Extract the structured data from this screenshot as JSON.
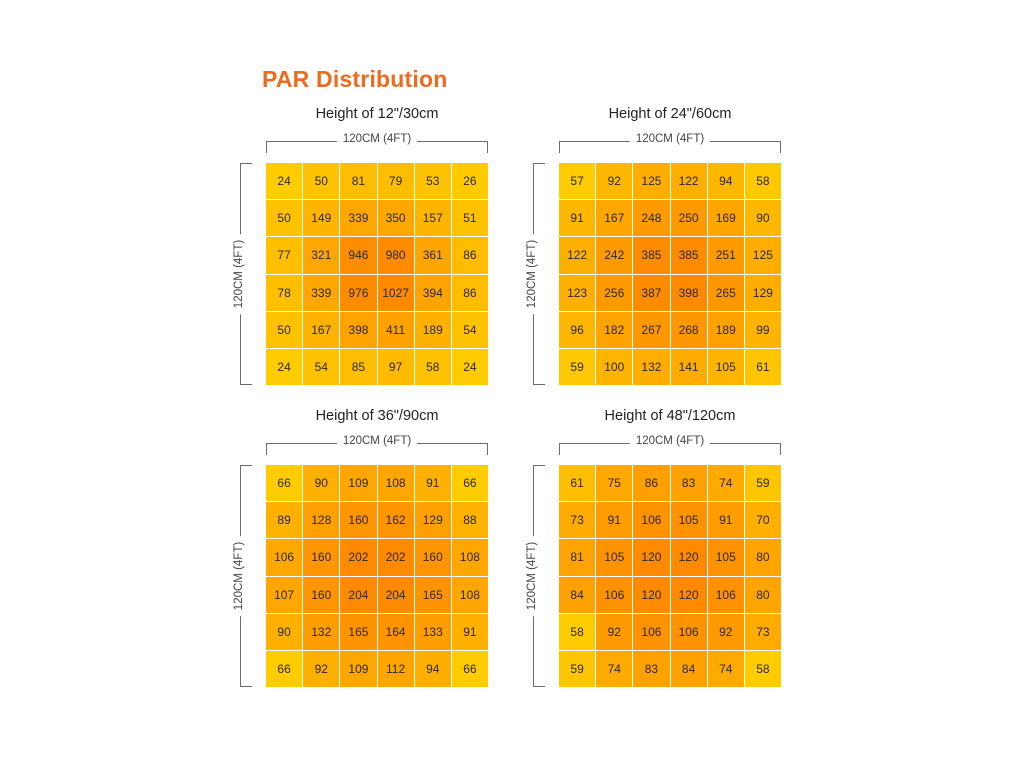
{
  "title": "PAR Distribution",
  "width_label": "120CM (4FT)",
  "height_label": "120CM (4FT)",
  "colors": {
    "title": "#ef6a1c",
    "low": "#ffcc00",
    "mid": "#ffa800",
    "high": "#ff8a00"
  },
  "chart_data": [
    {
      "type": "heatmap",
      "title": "Height of 12\"/30cm",
      "xlabel": "120CM (4FT)",
      "ylabel": "120CM (4FT)",
      "values": [
        [
          24,
          50,
          81,
          79,
          53,
          26
        ],
        [
          50,
          149,
          339,
          350,
          157,
          51
        ],
        [
          77,
          321,
          946,
          980,
          361,
          86
        ],
        [
          78,
          339,
          976,
          1027,
          394,
          86
        ],
        [
          50,
          167,
          398,
          411,
          189,
          54
        ],
        [
          24,
          54,
          85,
          97,
          58,
          24
        ]
      ]
    },
    {
      "type": "heatmap",
      "title": "Height of 24\"/60cm",
      "xlabel": "120CM (4FT)",
      "ylabel": "120CM (4FT)",
      "values": [
        [
          57,
          92,
          125,
          122,
          94,
          58
        ],
        [
          91,
          167,
          248,
          250,
          169,
          90
        ],
        [
          122,
          242,
          385,
          385,
          251,
          125
        ],
        [
          123,
          256,
          387,
          398,
          265,
          129
        ],
        [
          96,
          182,
          267,
          268,
          189,
          99
        ],
        [
          59,
          100,
          132,
          141,
          105,
          61
        ]
      ]
    },
    {
      "type": "heatmap",
      "title": "Height of 36\"/90cm",
      "xlabel": "120CM (4FT)",
      "ylabel": "120CM (4FT)",
      "values": [
        [
          66,
          90,
          109,
          108,
          91,
          66
        ],
        [
          89,
          128,
          160,
          162,
          129,
          88
        ],
        [
          106,
          160,
          202,
          202,
          160,
          108
        ],
        [
          107,
          160,
          204,
          204,
          165,
          108
        ],
        [
          90,
          132,
          165,
          164,
          133,
          91
        ],
        [
          66,
          92,
          109,
          112,
          94,
          66
        ]
      ]
    },
    {
      "type": "heatmap",
      "title": "Height of 48\"/120cm",
      "xlabel": "120CM (4FT)",
      "ylabel": "120CM (4FT)",
      "values": [
        [
          61,
          75,
          86,
          83,
          74,
          59
        ],
        [
          73,
          91,
          106,
          105,
          91,
          70
        ],
        [
          81,
          105,
          120,
          120,
          105,
          80
        ],
        [
          84,
          106,
          120,
          120,
          106,
          80
        ],
        [
          58,
          92,
          106,
          106,
          92,
          73
        ],
        [
          59,
          74,
          83,
          84,
          74,
          58
        ]
      ]
    }
  ]
}
